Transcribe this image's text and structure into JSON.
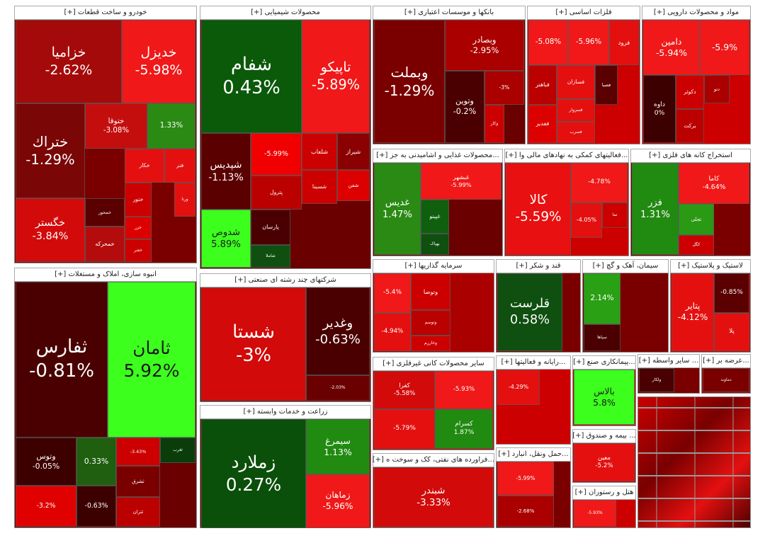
{
  "sectors": [
    {
      "title": "خودرو و ساخت قطعات [+]",
      "tiles": [
        {
          "name": "خزامیا",
          "change": "-2.62%"
        },
        {
          "name": "خدیزل",
          "change": "-5.98%"
        },
        {
          "name": "ختراك",
          "change": "-1.29%"
        },
        {
          "name": "ختوقا",
          "change": "-3.08%"
        },
        {
          "change": "1.33%"
        },
        {
          "name": "خگستر",
          "change": "-3.84%"
        },
        {
          "name": "خکار"
        },
        {
          "name": "فنر"
        },
        {
          "name": "ختور"
        },
        {
          "name": "خمحور"
        },
        {
          "name": "خمحرکه"
        },
        {
          "name": "خزر"
        },
        {
          "name": "خفنر"
        },
        {
          "name": "ورنا"
        }
      ]
    },
    {
      "title": "انبوه سازی، املاک و مستغلات [+]",
      "tiles": [
        {
          "name": "ثفارس",
          "change": "-0.81%"
        },
        {
          "name": "ثامان",
          "change": "5.92%"
        },
        {
          "name": "وتوس",
          "change": "-0.05%"
        },
        {
          "change": "0.33%"
        },
        {
          "change": "-3.43%"
        },
        {
          "name": "ثغرب"
        },
        {
          "name": "ثشرق"
        },
        {
          "name": "ثتران"
        },
        {
          "change": "-3.2%"
        },
        {
          "change": "-0.63%"
        }
      ]
    },
    {
      "title": "محصولات شیمیایی [+]",
      "tiles": [
        {
          "name": "شفام",
          "change": "0.43%"
        },
        {
          "name": "تاپیکو",
          "change": "-5.89%"
        },
        {
          "name": "شپدیس",
          "change": "-1.13%"
        },
        {
          "change": "-5.99%"
        },
        {
          "name": "شلعاب"
        },
        {
          "name": "شیراز"
        },
        {
          "name": "شفن"
        },
        {
          "name": "پترول"
        },
        {
          "name": "شسینا"
        },
        {
          "name": "شدوص",
          "change": "5.89%"
        },
        {
          "name": "پارسان"
        },
        {
          "name": "شاملا"
        }
      ]
    },
    {
      "title": "شرکتهای چند رشته ای صنعتی [+]",
      "tiles": [
        {
          "name": "شستا",
          "change": "-3%"
        },
        {
          "name": "وغدیر",
          "change": "-0.63%"
        },
        {
          "change": "-2.03%"
        }
      ]
    },
    {
      "title": "زراعت و خدمات وابسته [+]",
      "tiles": [
        {
          "name": "زملارد",
          "change": "0.27%"
        },
        {
          "name": "سیمرغ",
          "change": "1.13%"
        },
        {
          "name": "زماهان",
          "change": "-5.96%"
        }
      ]
    },
    {
      "title": "بانکها و موسسات اعتباری [+]",
      "tiles": [
        {
          "name": "وبملت",
          "change": "-1.29%"
        },
        {
          "name": "وبصادر",
          "change": "-2.95%"
        },
        {
          "name": "وتوین",
          "change": "-0.2%"
        },
        {
          "change": "-3%"
        },
        {
          "name": "وکار"
        }
      ]
    },
    {
      "title": "فلزات اساسی [+]",
      "tiles": [
        {
          "name": "فرود"
        },
        {
          "name": "فباهنر"
        },
        {
          "name": "فسازان"
        },
        {
          "name": "فصبا"
        },
        {
          "name": "فسزوار"
        },
        {
          "name": "ففدیر"
        },
        {
          "name": "فسرب"
        },
        {
          "change": "-5.08%"
        },
        {
          "change": "-5.96%"
        }
      ]
    },
    {
      "title": "مواد و محصولات دارویی [+]",
      "tiles": [
        {
          "name": "دامین",
          "change": "-5.94%"
        },
        {
          "change": "-5.9%"
        },
        {
          "name": "داوه",
          "change": "0%"
        },
        {
          "name": "دکوثر"
        },
        {
          "name": "برکت"
        },
        {
          "name": "دتو"
        }
      ]
    },
    {
      "title": "...محصولات غذایی و اشامیدنی به جز [+]",
      "tiles": [
        {
          "name": "غدیس",
          "change": "1.47%"
        },
        {
          "name": "غبشهر",
          "change": "-5.99%"
        },
        {
          "name": "غپینو"
        },
        {
          "name": "بهپاک"
        }
      ]
    },
    {
      "title": "...فعالیتهای کمکی به نهادهای مالی وا [+]",
      "tiles": [
        {
          "name": "کالا",
          "change": "-5.59%"
        },
        {
          "change": "-4.78%"
        },
        {
          "name": "تما"
        },
        {
          "change": "-4.05%"
        }
      ]
    },
    {
      "title": "استخراج کانه های فلزی [+]",
      "tiles": [
        {
          "name": "فزر",
          "change": "1.31%"
        },
        {
          "name": "کاما",
          "change": "-4.64%"
        },
        {
          "name": "تجلی"
        },
        {
          "name": "کگل"
        }
      ]
    },
    {
      "title": "سرمایه گذاریها [+]",
      "tiles": [
        {
          "change": "-5.4%"
        },
        {
          "name": "وتوصا"
        },
        {
          "name": "وتوسم"
        },
        {
          "name": "وخارزم"
        },
        {
          "change": "-4.94%"
        }
      ]
    },
    {
      "title": "قند و شکر [+]",
      "tiles": [
        {
          "name": "قلرست",
          "change": "0.58%"
        }
      ]
    },
    {
      "title": "سیمان، آهک و گچ [+]",
      "tiles": [
        {
          "change": "2.14%"
        },
        {
          "name": "سپاها"
        }
      ]
    },
    {
      "title": "لاستیک و پلاستیک [+]",
      "tiles": [
        {
          "name": "پتایر",
          "change": "-4.12%"
        },
        {
          "change": "-0.85%"
        },
        {
          "name": "پلا"
        }
      ]
    },
    {
      "title": "سایر محصولات کانی غیرفلزی [+]",
      "tiles": [
        {
          "name": "کفرا",
          "change": "-5.58%"
        },
        {
          "change": "-5.93%"
        },
        {
          "change": "-5.79%"
        },
        {
          "name": "کسرام",
          "change": "1.87%"
        }
      ]
    },
    {
      "title": "...فراورده های نفتی، کک و سوخت ه [+]",
      "tiles": [
        {
          "name": "شبندر",
          "change": "-3.33%"
        }
      ]
    },
    {
      "title": "...رایانه و فعالیتها [+]",
      "tiles": [
        {
          "change": "-4.29%"
        }
      ]
    },
    {
      "title": "...پیمانکاری صنع [+]",
      "tiles": [
        {
          "name": "بالاس",
          "change": "5.8%"
        }
      ]
    },
    {
      "title": "...حمل ونقل، انبارد [+]",
      "tiles": [
        {
          "change": "-5.99%"
        },
        {
          "change": "-2.68%"
        }
      ]
    },
    {
      "title": "... بیمه و صندوق [+]",
      "tiles": [
        {
          "name": "معین",
          "change": "-5.2%"
        }
      ]
    },
    {
      "title": "هتل و رستوران [+]",
      "tiles": [
        {
          "change": "-5.93%"
        }
      ]
    },
    {
      "title": "... سایر واسطه [+]",
      "tiles": [
        {
          "name": "ولکار"
        }
      ]
    },
    {
      "title": "...عرضه بر [+]",
      "tiles": [
        {
          "name": "دماوند"
        }
      ]
    }
  ]
}
